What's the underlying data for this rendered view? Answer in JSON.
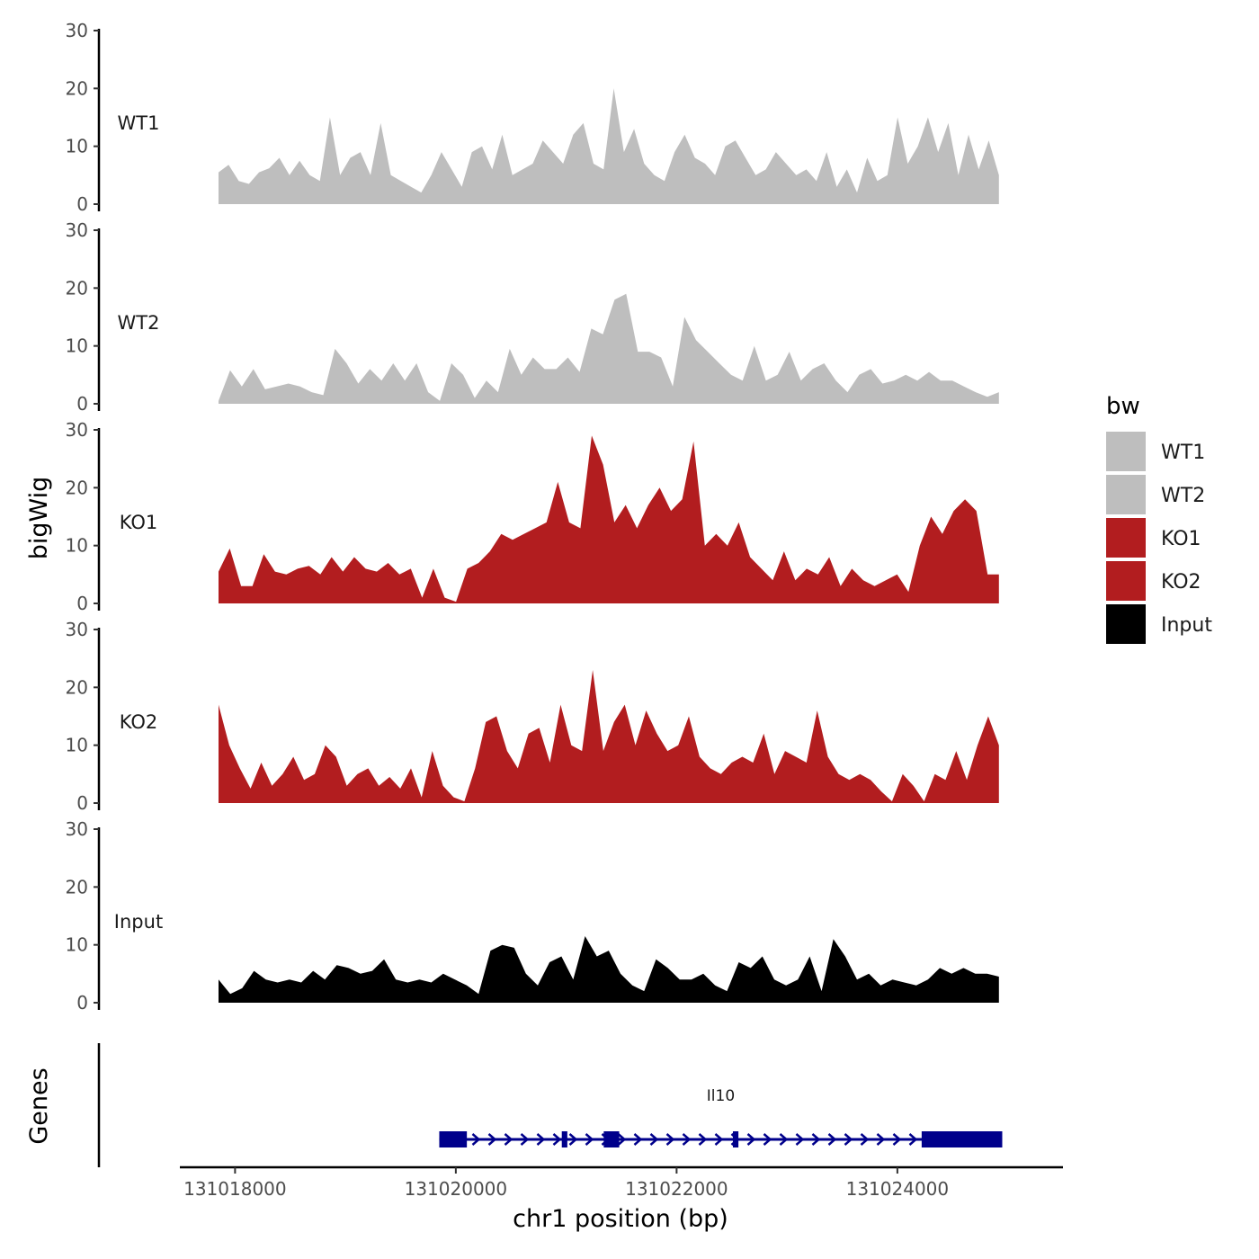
{
  "chart_data": {
    "type": "area",
    "title": "",
    "ylabel": "bigWig",
    "xlabel": "chr1 position (bp)",
    "genes_label": "Genes",
    "ylim": [
      0,
      30
    ],
    "yticks": [
      "0",
      "10",
      "20",
      "30"
    ],
    "xlim": [
      131017500,
      131025500
    ],
    "xticks": [
      {
        "value": 131018000,
        "label": "131018000"
      },
      {
        "value": 131020000,
        "label": "131020000"
      },
      {
        "value": 131022000,
        "label": "131022000"
      },
      {
        "value": 131024000,
        "label": "131024000"
      }
    ],
    "x_start": 131017850,
    "x_end": 131024920,
    "legend": {
      "title": "bw",
      "position": "right",
      "entries": [
        {
          "label": "WT1",
          "color": "#bebebe"
        },
        {
          "label": "WT2",
          "color": "#bebebe"
        },
        {
          "label": "KO1",
          "color": "#b21d1f"
        },
        {
          "label": "KO2",
          "color": "#b21d1f"
        },
        {
          "label": "Input",
          "color": "#000000"
        }
      ]
    },
    "series": [
      {
        "name": "WT1",
        "color": "#bebebe",
        "values": [
          5.5,
          6.8,
          4,
          3.5,
          5.5,
          6.2,
          8,
          5,
          7.5,
          5,
          4,
          15,
          5,
          8,
          9,
          5,
          14,
          5,
          4,
          3,
          2,
          5,
          9,
          6,
          3,
          9,
          10,
          6,
          12,
          5,
          6,
          7,
          11,
          9,
          7,
          12,
          14,
          7,
          6,
          20,
          9,
          13,
          7,
          5,
          4,
          9,
          12,
          8,
          7,
          5,
          10,
          11,
          8,
          5,
          6,
          9,
          7,
          5,
          6,
          4,
          9,
          3,
          6,
          2,
          8,
          4,
          5,
          15,
          7,
          10,
          15,
          9,
          14,
          5,
          12,
          6,
          11,
          5
        ]
      },
      {
        "name": "WT2",
        "color": "#bebebe",
        "values": [
          0.5,
          5.8,
          3,
          6,
          2.5,
          3,
          3.5,
          3,
          2,
          1.5,
          9.5,
          7,
          3.5,
          6,
          4,
          7,
          4,
          7,
          2,
          0.5,
          7,
          5,
          1,
          4,
          2,
          9.5,
          5,
          8,
          6,
          6,
          8,
          5.5,
          13,
          12,
          18,
          19,
          9,
          9,
          8,
          3,
          15,
          11,
          9,
          7,
          5,
          4,
          10,
          4,
          5,
          9,
          4,
          6,
          7,
          4,
          2,
          5,
          6,
          3.5,
          4,
          5,
          4,
          5.5,
          4,
          4,
          3,
          2,
          1.2,
          2
        ]
      },
      {
        "name": "KO1",
        "color": "#b21d1f",
        "values": [
          5.5,
          9.5,
          3,
          3,
          8.5,
          5.5,
          5,
          6,
          6.5,
          5,
          8,
          5.5,
          8,
          6,
          5.5,
          7,
          5,
          6,
          1,
          6,
          1,
          0.3,
          6,
          7,
          9,
          12,
          11,
          12,
          13,
          14,
          21,
          14,
          13,
          29,
          24,
          14,
          17,
          13,
          17,
          20,
          16,
          18,
          28,
          10,
          12,
          10,
          14,
          8,
          6,
          4,
          9,
          4,
          6,
          5,
          8,
          3,
          6,
          4,
          3,
          4,
          5,
          2,
          10,
          15,
          12,
          16,
          18,
          16,
          5,
          5
        ]
      },
      {
        "name": "KO2",
        "color": "#b21d1f",
        "values": [
          17,
          10,
          6,
          2.5,
          7,
          3,
          5,
          8,
          4,
          5,
          10,
          8,
          3,
          5,
          6,
          3,
          4.5,
          2.5,
          6,
          1,
          9,
          3,
          1,
          0.3,
          6,
          14,
          15,
          9,
          6,
          12,
          13,
          7,
          17,
          10,
          9,
          23,
          9,
          14,
          17,
          10,
          16,
          12,
          9,
          10,
          15,
          8,
          6,
          5,
          7,
          8,
          7,
          12,
          5,
          9,
          8,
          7,
          16,
          8,
          5,
          4,
          5,
          4,
          2,
          0.3,
          5,
          3,
          0.3,
          5,
          4,
          9,
          4,
          10,
          15,
          10
        ]
      },
      {
        "name": "Input",
        "color": "#000000",
        "values": [
          4,
          1.5,
          2.5,
          5.5,
          4,
          3.5,
          4,
          3.5,
          5.5,
          4,
          6.5,
          6,
          5,
          5.5,
          7.5,
          4,
          3.5,
          4,
          3.5,
          5,
          4,
          3,
          1.5,
          9,
          10,
          9.5,
          5,
          3,
          7,
          8,
          4,
          11.5,
          8,
          9,
          5,
          3,
          2,
          7.5,
          6,
          4,
          4,
          5,
          3,
          2,
          7,
          6,
          8,
          4,
          3,
          4,
          8,
          2,
          11,
          8,
          4,
          5,
          3,
          4,
          3.5,
          3,
          4,
          6,
          5,
          6,
          5,
          5,
          4.5
        ]
      }
    ],
    "gene": {
      "name": "Il10",
      "strand": "+",
      "start": 131019850,
      "end": 131024950,
      "exons": [
        [
          131019850,
          131020100
        ],
        [
          131020960,
          131021010
        ],
        [
          131021340,
          131021480
        ],
        [
          131022510,
          131022560
        ],
        [
          131024220,
          131024950
        ]
      ]
    }
  }
}
